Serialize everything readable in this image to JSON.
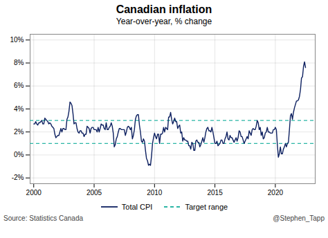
{
  "chart_data": {
    "type": "line",
    "title": "Canadian inflation",
    "subtitle": "Year-over-year, % change",
    "source": "Source: Statistics Canada",
    "credit": "@Stephen_Tapp",
    "x": [
      2000,
      2000.0833333333333,
      2000.1666666666667,
      2000.25,
      2000.3333333333333,
      2000.4166666666667,
      2000.5,
      2000.5833333333333,
      2000.6666666666667,
      2000.75,
      2000.8333333333333,
      2000.9166666666667,
      2001,
      2001.0833333333333,
      2001.1666666666667,
      2001.25,
      2001.3333333333333,
      2001.4166666666667,
      2001.5,
      2001.5833333333333,
      2001.6666666666667,
      2001.75,
      2001.8333333333333,
      2001.9166666666667,
      2002,
      2002.0833333333333,
      2002.1666666666667,
      2002.25,
      2002.3333333333333,
      2002.4166666666667,
      2002.5,
      2002.5833333333333,
      2002.6666666666667,
      2002.75,
      2002.8333333333333,
      2002.9166666666667,
      2003,
      2003.0833333333333,
      2003.1666666666667,
      2003.25,
      2003.3333333333333,
      2003.4166666666667,
      2003.5,
      2003.5833333333333,
      2003.6666666666667,
      2003.75,
      2003.8333333333333,
      2003.9166666666667,
      2004,
      2004.0833333333333,
      2004.1666666666667,
      2004.25,
      2004.3333333333333,
      2004.4166666666667,
      2004.5,
      2004.5833333333333,
      2004.6666666666667,
      2004.75,
      2004.8333333333333,
      2004.9166666666667,
      2005,
      2005.0833333333333,
      2005.1666666666667,
      2005.25,
      2005.3333333333333,
      2005.4166666666667,
      2005.5,
      2005.5833333333333,
      2005.6666666666667,
      2005.75,
      2005.8333333333333,
      2005.9166666666667,
      2006,
      2006.0833333333333,
      2006.1666666666667,
      2006.25,
      2006.3333333333333,
      2006.4166666666667,
      2006.5,
      2006.5833333333333,
      2006.6666666666667,
      2006.75,
      2006.8333333333333,
      2006.9166666666667,
      2007,
      2007.0833333333333,
      2007.1666666666667,
      2007.25,
      2007.3333333333333,
      2007.4166666666667,
      2007.5,
      2007.5833333333333,
      2007.6666666666667,
      2007.75,
      2007.8333333333333,
      2007.9166666666667,
      2008,
      2008.0833333333333,
      2008.1666666666667,
      2008.25,
      2008.3333333333333,
      2008.4166666666667,
      2008.5,
      2008.5833333333333,
      2008.6666666666667,
      2008.75,
      2008.8333333333333,
      2008.9166666666667,
      2009,
      2009.0833333333333,
      2009.1666666666667,
      2009.25,
      2009.3333333333333,
      2009.4166666666667,
      2009.5,
      2009.5833333333333,
      2009.6666666666667,
      2009.75,
      2009.8333333333333,
      2009.9166666666667,
      2010,
      2010.0833333333333,
      2010.1666666666667,
      2010.25,
      2010.3333333333333,
      2010.4166666666667,
      2010.5,
      2010.5833333333333,
      2010.6666666666667,
      2010.75,
      2010.8333333333333,
      2010.9166666666667,
      2011,
      2011.0833333333333,
      2011.1666666666667,
      2011.25,
      2011.3333333333333,
      2011.4166666666667,
      2011.5,
      2011.5833333333333,
      2011.6666666666667,
      2011.75,
      2011.8333333333333,
      2011.9166666666667,
      2012,
      2012.0833333333333,
      2012.1666666666667,
      2012.25,
      2012.3333333333333,
      2012.4166666666667,
      2012.5,
      2012.5833333333333,
      2012.6666666666667,
      2012.75,
      2012.8333333333333,
      2012.9166666666667,
      2013,
      2013.0833333333333,
      2013.1666666666667,
      2013.25,
      2013.3333333333333,
      2013.4166666666667,
      2013.5,
      2013.5833333333333,
      2013.6666666666667,
      2013.75,
      2013.8333333333333,
      2013.9166666666667,
      2014,
      2014.0833333333333,
      2014.1666666666667,
      2014.25,
      2014.3333333333333,
      2014.4166666666667,
      2014.5,
      2014.5833333333333,
      2014.6666666666667,
      2014.75,
      2014.8333333333333,
      2014.9166666666667,
      2015,
      2015.0833333333333,
      2015.1666666666667,
      2015.25,
      2015.3333333333333,
      2015.4166666666667,
      2015.5,
      2015.5833333333333,
      2015.6666666666667,
      2015.75,
      2015.8333333333333,
      2015.9166666666667,
      2016,
      2016.0833333333333,
      2016.1666666666667,
      2016.25,
      2016.3333333333333,
      2016.4166666666667,
      2016.5,
      2016.5833333333333,
      2016.6666666666667,
      2016.75,
      2016.8333333333333,
      2016.9166666666667,
      2017,
      2017.0833333333333,
      2017.1666666666667,
      2017.25,
      2017.3333333333333,
      2017.4166666666667,
      2017.5,
      2017.5833333333333,
      2017.6666666666667,
      2017.75,
      2017.8333333333333,
      2017.9166666666667,
      2018,
      2018.0833333333333,
      2018.1666666666667,
      2018.25,
      2018.3333333333333,
      2018.4166666666667,
      2018.5,
      2018.5833333333333,
      2018.6666666666667,
      2018.75,
      2018.8333333333333,
      2018.9166666666667,
      2019,
      2019.0833333333333,
      2019.1666666666667,
      2019.25,
      2019.3333333333333,
      2019.4166666666667,
      2019.5,
      2019.5833333333333,
      2019.6666666666667,
      2019.75,
      2019.8333333333333,
      2019.9166666666667,
      2020,
      2020.0833333333333,
      2020.1666666666667,
      2020.25,
      2020.3333333333333,
      2020.4166666666667,
      2020.5,
      2020.5833333333333,
      2020.6666666666667,
      2020.75,
      2020.8333333333333,
      2020.9166666666667,
      2021,
      2021.0833333333333,
      2021.1666666666667,
      2021.25,
      2021.3333333333333,
      2021.4166666666667,
      2021.5,
      2021.5833333333333,
      2021.6666666666667,
      2021.75,
      2021.8333333333333,
      2021.9166666666667,
      2022,
      2022.0833333333333,
      2022.1666666666667,
      2022.25,
      2022.3333333333333,
      2022.4166666666667,
      2022.5
    ],
    "series": [
      {
        "name": "Total CPI",
        "color": "#0d2060",
        "values": [
          2.7,
          2.7,
          2.9,
          2.7,
          2.6,
          2.8,
          2.8,
          2.9,
          3.0,
          2.7,
          2.7,
          3.2,
          3.1,
          3.0,
          2.9,
          2.7,
          2.8,
          2.7,
          2.5,
          2.4,
          2.3,
          1.8,
          1.5,
          1.6,
          1.7,
          1.7,
          2.0,
          2.3,
          2.0,
          2.3,
          2.3,
          2.2,
          2.2,
          3.1,
          3.3,
          3.8,
          4.6,
          4.5,
          4.3,
          3.6,
          2.7,
          2.8,
          2.8,
          2.3,
          2.0,
          1.9,
          2.1,
          2.1,
          1.9,
          1.9,
          1.6,
          1.8,
          1.8,
          2.5,
          2.4,
          2.3,
          1.9,
          2.3,
          2.4,
          2.4,
          2.2,
          2.2,
          2.2,
          2.0,
          2.4,
          2.0,
          2.3,
          2.7,
          2.6,
          2.6,
          2.3,
          2.2,
          2.8,
          2.2,
          2.2,
          2.4,
          2.5,
          2.8,
          2.5,
          1.9,
          0.7,
          0.9,
          1.4,
          1.6,
          2.0,
          2.3,
          2.3,
          2.2,
          2.2,
          2.2,
          2.2,
          1.7,
          2.0,
          2.4,
          2.5,
          2.4,
          2.2,
          2.4,
          1.4,
          1.7,
          2.2,
          3.1,
          3.4,
          3.5,
          3.5,
          2.6,
          2.0,
          1.2,
          1.1,
          1.4,
          1.2,
          0.4,
          -0.3,
          -0.5,
          -0.9,
          -0.8,
          -0.9,
          -0.1,
          1.0,
          1.5,
          1.9,
          1.6,
          1.4,
          1.8,
          1.8,
          1.0,
          1.8,
          1.8,
          1.9,
          2.4,
          2.0,
          2.4,
          2.3,
          2.2,
          3.3,
          3.3,
          3.7,
          3.1,
          2.7,
          2.9,
          3.2,
          2.9,
          2.9,
          2.3,
          2.5,
          2.6,
          1.9,
          2.0,
          1.2,
          1.5,
          1.3,
          1.3,
          1.2,
          1.2,
          0.8,
          0.8,
          0.5,
          1.1,
          1.0,
          0.4,
          0.4,
          1.2,
          1.3,
          1.1,
          1.1,
          0.7,
          0.9,
          1.2,
          1.5,
          1.1,
          1.5,
          2.0,
          2.3,
          2.4,
          2.1,
          2.1,
          2.0,
          2.4,
          2.0,
          1.5,
          1.0,
          1.0,
          1.2,
          0.8,
          0.9,
          1.0,
          1.3,
          1.3,
          1.0,
          1.0,
          1.4,
          1.6,
          2.0,
          1.4,
          1.3,
          1.7,
          1.5,
          1.5,
          1.3,
          1.1,
          1.3,
          1.5,
          1.2,
          1.5,
          2.1,
          2.0,
          1.6,
          1.6,
          1.3,
          1.0,
          1.2,
          1.4,
          1.6,
          1.4,
          2.1,
          1.9,
          1.7,
          2.2,
          2.3,
          2.2,
          2.2,
          2.5,
          3.0,
          2.8,
          2.2,
          2.4,
          1.7,
          2.0,
          1.4,
          1.5,
          1.9,
          2.0,
          2.4,
          2.0,
          2.0,
          1.9,
          1.9,
          1.9,
          2.2,
          2.2,
          2.4,
          2.2,
          0.9,
          -0.2,
          0.1,
          0.7,
          0.1,
          0.1,
          0.5,
          0.7,
          1.0,
          0.7,
          1.0,
          1.1,
          2.2,
          3.4,
          3.6,
          3.1,
          3.7,
          4.1,
          4.4,
          4.7,
          4.7,
          4.8,
          5.1,
          5.7,
          6.7,
          6.8,
          7.7,
          8.1,
          7.6
        ]
      }
    ],
    "reference_lines": {
      "name": "Target range",
      "color": "#2ab5a5",
      "line_style": "dashed",
      "values": [
        1,
        3
      ]
    },
    "xlim": [
      1999.7,
      2023.3
    ],
    "xticks": [
      2000,
      2005,
      2010,
      2015,
      2020
    ],
    "ylim": [
      -2.5,
      10.5
    ],
    "yticks": [
      {
        "value": -2,
        "label": "-2%"
      },
      {
        "value": 0,
        "label": "0%"
      },
      {
        "value": 2,
        "label": "2%"
      },
      {
        "value": 4,
        "label": "4%"
      },
      {
        "value": 6,
        "label": "6%"
      },
      {
        "value": 8,
        "label": "8%"
      },
      {
        "value": 10,
        "label": "10%"
      }
    ],
    "grid": true,
    "legend": "bottom"
  }
}
